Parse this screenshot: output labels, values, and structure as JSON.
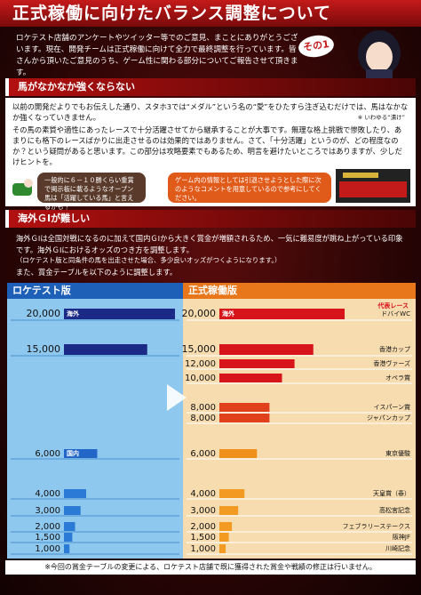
{
  "header": {
    "title": "正式稼働に向けたバランス調整について",
    "badge": "その1"
  },
  "intro": "ロケテスト店舗のアンケートやツイッター等でのご意見、まことにありがとうございます。現在、開発チームは正式稼働に向けて全力で最終調整を行っています。皆さんから頂いたご意見のうち、ゲーム性に関わる部分についてご報告させて頂きます。",
  "section1": {
    "heading": "馬がなかなか強くならない",
    "paragraphs": [
      "以前の開発だよりでもお伝えした通り、スタホ3では“メダル”という名の“愛”をひたすら注ぎ込むだけでは、馬はなかなか強くなっていきません。",
      "その馬の素質や適性にあったレースで十分活躍させてから継承することが大事です。無理な格上挑戦で惨敗したり、あまりにも格下のレースばかりに出走させるのは効果的ではありません。さて、「十分活躍」というのが、どの程度なのか？という疑問があると思います。この部分は攻略要素でもあるため、明言を避けたいところではありますが、少しだけヒントを。"
    ],
    "note": "※ いわゆる“漬け”",
    "hints": [
      "一般的に６－１０勝くらい重賞で掲示板に載るようなオープン馬は「活躍している馬」と言えるかも？",
      "ゲーム内の情報としては引退させようとした際に次のようなコメントを用意しているので参考にしてください。"
    ]
  },
  "section2": {
    "heading": "海外ＧⅠが難しい",
    "paragraphs": [
      "海外ＧⅠは全国対戦になるのに加えて国内ＧⅠから大きく賞金が増額されるため、一気に難易度が跳ね上がっている印象です。海外ＧⅠにおけるオッズのつき方を調整します。",
      "（ロケテスト版と同条件の馬を出走させた場合、多少良いオッズがつくようになります。）",
      "また、賞金テーブルを以下のように調整します。"
    ]
  },
  "tables": [
    {
      "title": "ロケテスト版",
      "rows": [
        {
          "value": 20000,
          "label": "20,000",
          "tag": "海外",
          "color": "#1b2a86"
        },
        {
          "value": 15000,
          "label": "15,000",
          "color": "#1b2a86"
        },
        {
          "value": 6000,
          "label": "6,000",
          "tag": "国内",
          "color": "#2266c8"
        },
        {
          "value": 4000,
          "label": "4,000",
          "color": "#2a7ad6"
        },
        {
          "value": 3000,
          "label": "3,000",
          "color": "#2a7ad6"
        },
        {
          "value": 2000,
          "label": "2,000",
          "color": "#2a7ad6"
        },
        {
          "value": 1500,
          "label": "1,500",
          "color": "#2a7ad6"
        },
        {
          "value": 1000,
          "label": "1,000",
          "color": "#2a7ad6"
        }
      ]
    },
    {
      "title": "正式稼働版",
      "column_label": "代表レース",
      "rows": [
        {
          "value": 20000,
          "label": "20,000",
          "tag": "海外",
          "race": "ドバイWC",
          "color": "#d8141b"
        },
        {
          "value": 15000,
          "label": "15,000",
          "race": "香港カップ",
          "color": "#d8141b"
        },
        {
          "value": 12000,
          "label": "12,000",
          "race": "香港ヴァーズ",
          "color": "#d8141b"
        },
        {
          "value": 10000,
          "label": "10,000",
          "race": "オペラ賞",
          "color": "#d8141b"
        },
        {
          "value": 8000,
          "label": "8,000",
          "race": "イスパーン賞",
          "color": "#e0401b"
        },
        {
          "value": 8000,
          "label": "8,000",
          "race": "ジャパンカップ",
          "color": "#e0401b"
        },
        {
          "value": 6000,
          "label": "6,000",
          "race": "東京優駿",
          "color": "#f0901a"
        },
        {
          "value": 4000,
          "label": "4,000",
          "race": "天皇賞（春）",
          "color": "#f39a22"
        },
        {
          "value": 3000,
          "label": "3,000",
          "race": "高松宮記念",
          "color": "#f39a22"
        },
        {
          "value": 2000,
          "label": "2,000",
          "race": "フェブラリーステークス",
          "color": "#f39a22"
        },
        {
          "value": 1500,
          "label": "1,500",
          "race": "阪神JF",
          "color": "#f39a22"
        },
        {
          "value": 1000,
          "label": "1,000",
          "race": "川崎記念",
          "color": "#f39a22"
        }
      ]
    }
  ],
  "footer": "※今回の賞金テーブルの変更による、ロケテスト店舗で既に獲得された賞金や戦績の修正は行いません。"
}
